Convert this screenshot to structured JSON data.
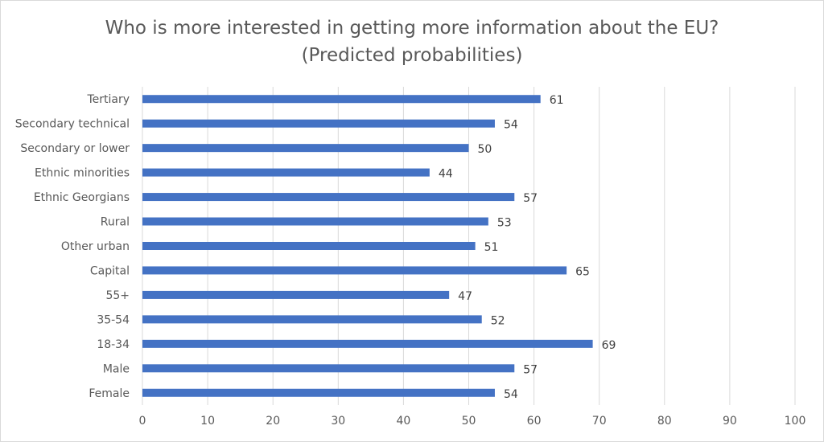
{
  "chart_data": {
    "type": "bar",
    "orientation": "horizontal",
    "title": "Who is more interested in getting more information about the EU?",
    "subtitle": "(Predicted probabilities)",
    "categories": [
      "Tertiary",
      "Secondary technical",
      "Secondary or lower",
      "Ethnic minorities",
      "Ethnic Georgians",
      "Rural",
      "Other urban",
      "Capital",
      "55+",
      "35-54",
      "18-34",
      "Male",
      "Female"
    ],
    "values": [
      61,
      54,
      50,
      44,
      57,
      53,
      51,
      65,
      47,
      52,
      69,
      57,
      54
    ],
    "xlim": [
      0,
      100
    ],
    "xticks": [
      0,
      10,
      20,
      30,
      40,
      50,
      60,
      70,
      80,
      90,
      100
    ],
    "grid": true,
    "data_labels": true,
    "bar_color": "#4472c4"
  }
}
